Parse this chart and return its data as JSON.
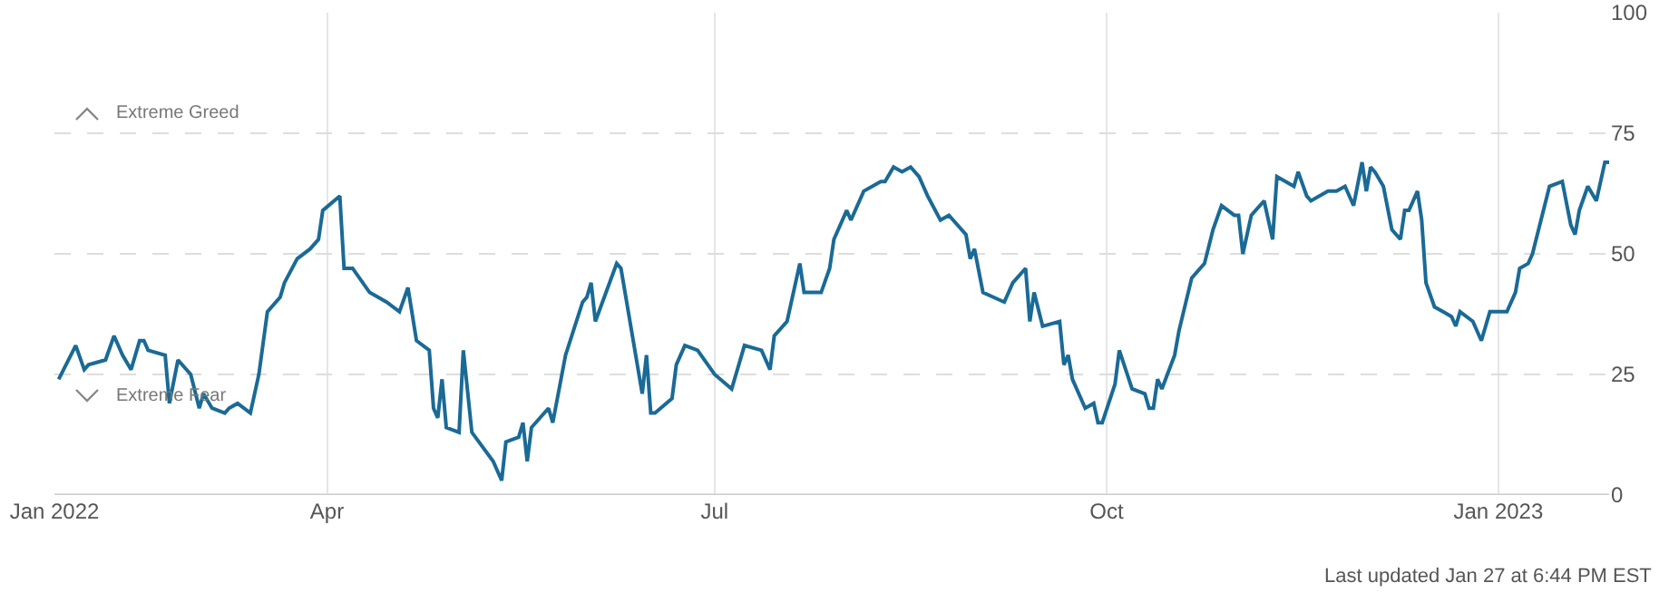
{
  "chart_data": {
    "type": "line",
    "x": [
      "2022-01-28",
      "2022-02-01",
      "2022-02-03",
      "2022-02-04",
      "2022-02-08",
      "2022-02-10",
      "2022-02-12",
      "2022-02-14",
      "2022-02-16",
      "2022-02-17",
      "2022-02-18",
      "2022-02-22",
      "2022-02-23",
      "2022-02-25",
      "2022-02-28",
      "2022-03-02",
      "2022-03-03",
      "2022-03-05",
      "2022-03-08",
      "2022-03-09",
      "2022-03-11",
      "2022-03-14",
      "2022-03-16",
      "2022-03-18",
      "2022-03-21",
      "2022-03-22",
      "2022-03-25",
      "2022-03-28",
      "2022-03-30",
      "2022-03-31",
      "2022-04-04",
      "2022-04-05",
      "2022-04-07",
      "2022-04-11",
      "2022-04-15",
      "2022-04-18",
      "2022-04-20",
      "2022-04-22",
      "2022-04-25",
      "2022-04-26",
      "2022-04-27",
      "2022-04-28",
      "2022-04-29",
      "2022-05-02",
      "2022-05-03",
      "2022-05-05",
      "2022-05-10",
      "2022-05-12",
      "2022-05-13",
      "2022-05-16",
      "2022-05-17",
      "2022-05-18",
      "2022-05-19",
      "2022-05-23",
      "2022-05-24",
      "2022-05-27",
      "2022-05-31",
      "2022-06-01",
      "2022-06-02",
      "2022-06-03",
      "2022-06-08",
      "2022-06-09",
      "2022-06-14",
      "2022-06-15",
      "2022-06-16",
      "2022-06-17",
      "2022-06-21",
      "2022-06-22",
      "2022-06-24",
      "2022-06-27",
      "2022-07-01",
      "2022-07-05",
      "2022-07-08",
      "2022-07-12",
      "2022-07-14",
      "2022-07-15",
      "2022-07-18",
      "2022-07-21",
      "2022-07-22",
      "2022-07-26",
      "2022-07-28",
      "2022-07-29",
      "2022-08-01",
      "2022-08-02",
      "2022-08-05",
      "2022-08-09",
      "2022-08-10",
      "2022-08-12",
      "2022-08-14",
      "2022-08-16",
      "2022-08-18",
      "2022-08-20",
      "2022-08-23",
      "2022-08-25",
      "2022-08-29",
      "2022-08-30",
      "2022-08-31",
      "2022-09-02",
      "2022-09-07",
      "2022-09-09",
      "2022-09-12",
      "2022-09-13",
      "2022-09-14",
      "2022-09-16",
      "2022-09-20",
      "2022-09-21",
      "2022-09-22",
      "2022-09-23",
      "2022-09-26",
      "2022-09-28",
      "2022-09-29",
      "2022-09-30",
      "2022-10-03",
      "2022-10-04",
      "2022-10-07",
      "2022-10-10",
      "2022-10-11",
      "2022-10-12",
      "2022-10-13",
      "2022-10-14",
      "2022-10-17",
      "2022-10-18",
      "2022-10-21",
      "2022-10-24",
      "2022-10-26",
      "2022-10-28",
      "2022-10-31",
      "2022-11-01",
      "2022-11-02",
      "2022-11-04",
      "2022-11-07",
      "2022-11-09",
      "2022-11-10",
      "2022-11-14",
      "2022-11-15",
      "2022-11-17",
      "2022-11-18",
      "2022-11-22",
      "2022-11-24",
      "2022-11-26",
      "2022-11-28",
      "2022-11-30",
      "2022-12-01",
      "2022-12-02",
      "2022-12-03",
      "2022-12-05",
      "2022-12-07",
      "2022-12-09",
      "2022-12-10",
      "2022-12-11",
      "2022-12-13",
      "2022-12-14",
      "2022-12-15",
      "2022-12-17",
      "2022-12-19",
      "2022-12-21",
      "2022-12-22",
      "2022-12-23",
      "2022-12-26",
      "2022-12-28",
      "2022-12-30",
      "2022-12-31",
      "2023-01-03",
      "2023-01-05",
      "2023-01-06",
      "2023-01-08",
      "2023-01-09",
      "2023-01-13",
      "2023-01-16",
      "2023-01-18",
      "2023-01-19",
      "2023-01-20",
      "2023-01-22",
      "2023-01-24",
      "2023-01-26",
      "2023-01-27"
    ],
    "series": [
      {
        "color": "#1a6a96",
        "values": [
          24,
          31,
          26,
          27,
          28,
          33,
          29,
          26,
          32,
          32,
          30,
          29,
          19,
          28,
          25,
          18,
          21,
          18,
          17,
          18,
          19,
          17,
          25,
          38,
          41,
          44,
          49,
          51,
          53,
          59,
          62,
          47,
          47,
          42,
          40,
          38,
          43,
          32,
          30,
          18,
          16,
          24,
          14,
          13,
          30,
          13,
          7,
          3,
          11,
          12,
          15,
          7,
          14,
          18,
          15,
          29,
          40,
          41,
          44,
          36,
          48,
          47,
          21,
          29,
          17,
          17,
          20,
          27,
          31,
          30,
          25,
          22,
          31,
          30,
          26,
          33,
          36,
          48,
          42,
          42,
          47,
          53,
          59,
          57,
          63,
          65,
          65,
          68,
          67,
          68,
          66,
          62,
          57,
          58,
          54,
          49,
          51,
          42,
          40,
          44,
          47,
          36,
          42,
          35,
          36,
          27,
          29,
          24,
          18,
          19,
          15,
          15,
          23,
          30,
          22,
          21,
          18,
          18,
          24,
          22,
          29,
          34,
          45,
          48,
          55,
          60,
          58,
          58,
          50,
          58,
          61,
          53,
          66,
          64,
          67,
          62,
          61,
          63,
          63,
          64,
          60,
          69,
          63,
          68,
          67,
          64,
          55,
          53,
          59,
          59,
          63,
          57,
          44,
          39,
          38,
          37,
          35,
          38,
          36,
          32,
          38,
          38,
          38,
          42,
          47,
          48,
          50,
          64,
          65,
          56,
          54,
          59,
          64,
          61,
          69,
          69
        ]
      }
    ],
    "xlim": [
      "2022-01-27",
      "2023-01-27"
    ],
    "xticks": [
      {
        "value": "2022-01-27",
        "label": "Jan 2022"
      },
      {
        "value": "2022-04-01",
        "label": "Apr"
      },
      {
        "value": "2022-07-01",
        "label": "Jul"
      },
      {
        "value": "2022-10-01",
        "label": "Oct"
      },
      {
        "value": "2023-01-01",
        "label": "Jan 2023"
      }
    ],
    "ylim": [
      0,
      100
    ],
    "yticks": [
      0,
      25,
      50,
      75,
      100
    ],
    "grid": true,
    "marker": "none",
    "line_style": "solid",
    "annotations": [
      "Extreme Greed",
      "Extreme Fear",
      "Last updated Jan 27 at 6:44 PM EST"
    ]
  }
}
